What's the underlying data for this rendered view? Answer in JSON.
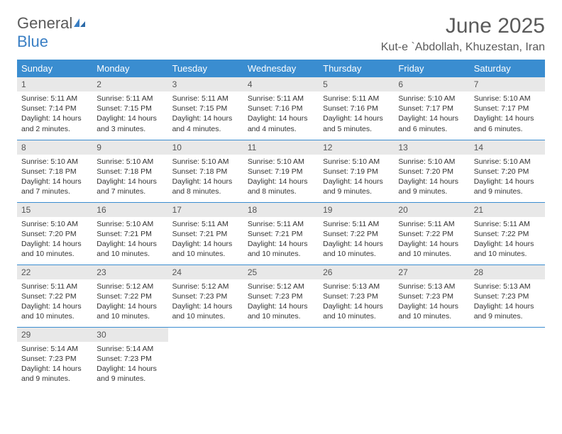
{
  "logo": {
    "text1": "General",
    "text2": "Blue"
  },
  "title": "June 2025",
  "location": "Kut-e `Abdollah, Khuzestan, Iran",
  "colors": {
    "header_bg": "#3a8dd0",
    "header_text": "#ffffff",
    "daynum_bg": "#e8e8e8",
    "border": "#3a8dd0",
    "title_color": "#5a5a5a",
    "logo_gray": "#5a5a5a",
    "logo_blue": "#3a7fc4"
  },
  "weekdays": [
    "Sunday",
    "Monday",
    "Tuesday",
    "Wednesday",
    "Thursday",
    "Friday",
    "Saturday"
  ],
  "days": [
    {
      "n": "1",
      "sr": "5:11 AM",
      "ss": "7:14 PM",
      "d1": "Daylight: 14 hours",
      "d2": "and 2 minutes."
    },
    {
      "n": "2",
      "sr": "5:11 AM",
      "ss": "7:15 PM",
      "d1": "Daylight: 14 hours",
      "d2": "and 3 minutes."
    },
    {
      "n": "3",
      "sr": "5:11 AM",
      "ss": "7:15 PM",
      "d1": "Daylight: 14 hours",
      "d2": "and 4 minutes."
    },
    {
      "n": "4",
      "sr": "5:11 AM",
      "ss": "7:16 PM",
      "d1": "Daylight: 14 hours",
      "d2": "and 4 minutes."
    },
    {
      "n": "5",
      "sr": "5:11 AM",
      "ss": "7:16 PM",
      "d1": "Daylight: 14 hours",
      "d2": "and 5 minutes."
    },
    {
      "n": "6",
      "sr": "5:10 AM",
      "ss": "7:17 PM",
      "d1": "Daylight: 14 hours",
      "d2": "and 6 minutes."
    },
    {
      "n": "7",
      "sr": "5:10 AM",
      "ss": "7:17 PM",
      "d1": "Daylight: 14 hours",
      "d2": "and 6 minutes."
    },
    {
      "n": "8",
      "sr": "5:10 AM",
      "ss": "7:18 PM",
      "d1": "Daylight: 14 hours",
      "d2": "and 7 minutes."
    },
    {
      "n": "9",
      "sr": "5:10 AM",
      "ss": "7:18 PM",
      "d1": "Daylight: 14 hours",
      "d2": "and 7 minutes."
    },
    {
      "n": "10",
      "sr": "5:10 AM",
      "ss": "7:18 PM",
      "d1": "Daylight: 14 hours",
      "d2": "and 8 minutes."
    },
    {
      "n": "11",
      "sr": "5:10 AM",
      "ss": "7:19 PM",
      "d1": "Daylight: 14 hours",
      "d2": "and 8 minutes."
    },
    {
      "n": "12",
      "sr": "5:10 AM",
      "ss": "7:19 PM",
      "d1": "Daylight: 14 hours",
      "d2": "and 9 minutes."
    },
    {
      "n": "13",
      "sr": "5:10 AM",
      "ss": "7:20 PM",
      "d1": "Daylight: 14 hours",
      "d2": "and 9 minutes."
    },
    {
      "n": "14",
      "sr": "5:10 AM",
      "ss": "7:20 PM",
      "d1": "Daylight: 14 hours",
      "d2": "and 9 minutes."
    },
    {
      "n": "15",
      "sr": "5:10 AM",
      "ss": "7:20 PM",
      "d1": "Daylight: 14 hours",
      "d2": "and 10 minutes."
    },
    {
      "n": "16",
      "sr": "5:10 AM",
      "ss": "7:21 PM",
      "d1": "Daylight: 14 hours",
      "d2": "and 10 minutes."
    },
    {
      "n": "17",
      "sr": "5:11 AM",
      "ss": "7:21 PM",
      "d1": "Daylight: 14 hours",
      "d2": "and 10 minutes."
    },
    {
      "n": "18",
      "sr": "5:11 AM",
      "ss": "7:21 PM",
      "d1": "Daylight: 14 hours",
      "d2": "and 10 minutes."
    },
    {
      "n": "19",
      "sr": "5:11 AM",
      "ss": "7:22 PM",
      "d1": "Daylight: 14 hours",
      "d2": "and 10 minutes."
    },
    {
      "n": "20",
      "sr": "5:11 AM",
      "ss": "7:22 PM",
      "d1": "Daylight: 14 hours",
      "d2": "and 10 minutes."
    },
    {
      "n": "21",
      "sr": "5:11 AM",
      "ss": "7:22 PM",
      "d1": "Daylight: 14 hours",
      "d2": "and 10 minutes."
    },
    {
      "n": "22",
      "sr": "5:11 AM",
      "ss": "7:22 PM",
      "d1": "Daylight: 14 hours",
      "d2": "and 10 minutes."
    },
    {
      "n": "23",
      "sr": "5:12 AM",
      "ss": "7:22 PM",
      "d1": "Daylight: 14 hours",
      "d2": "and 10 minutes."
    },
    {
      "n": "24",
      "sr": "5:12 AM",
      "ss": "7:23 PM",
      "d1": "Daylight: 14 hours",
      "d2": "and 10 minutes."
    },
    {
      "n": "25",
      "sr": "5:12 AM",
      "ss": "7:23 PM",
      "d1": "Daylight: 14 hours",
      "d2": "and 10 minutes."
    },
    {
      "n": "26",
      "sr": "5:13 AM",
      "ss": "7:23 PM",
      "d1": "Daylight: 14 hours",
      "d2": "and 10 minutes."
    },
    {
      "n": "27",
      "sr": "5:13 AM",
      "ss": "7:23 PM",
      "d1": "Daylight: 14 hours",
      "d2": "and 10 minutes."
    },
    {
      "n": "28",
      "sr": "5:13 AM",
      "ss": "7:23 PM",
      "d1": "Daylight: 14 hours",
      "d2": "and 9 minutes."
    },
    {
      "n": "29",
      "sr": "5:14 AM",
      "ss": "7:23 PM",
      "d1": "Daylight: 14 hours",
      "d2": "and 9 minutes."
    },
    {
      "n": "30",
      "sr": "5:14 AM",
      "ss": "7:23 PM",
      "d1": "Daylight: 14 hours",
      "d2": "and 9 minutes."
    }
  ],
  "labels": {
    "sunrise": "Sunrise:",
    "sunset": "Sunset:"
  }
}
